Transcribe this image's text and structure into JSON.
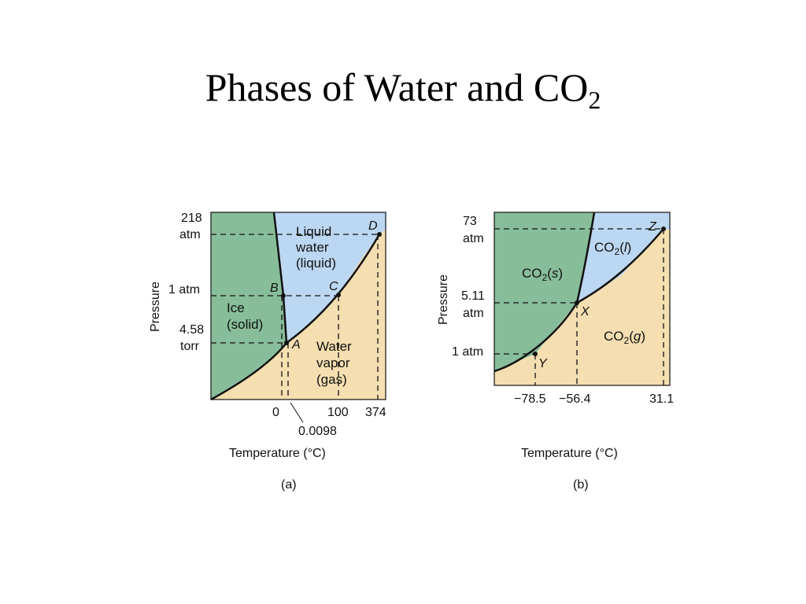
{
  "slide": {
    "title_main": "Phases of Water and CO",
    "title_sub": "2"
  },
  "colors": {
    "solid": "#88bd9a",
    "liquid": "#bcd7f1",
    "gas": "#f5deb0",
    "line": "#111111"
  },
  "panel_a": {
    "caption": "(a)",
    "x_axis_label": "Temperature (°C)",
    "y_axis_label": "Pressure",
    "y_ticks": {
      "t218_a": "218",
      "t218_b": "atm",
      "t1": "1 atm",
      "t458_a": "4.58",
      "t458_b": "torr"
    },
    "x_ticks": {
      "t0": "0",
      "t0098": "0.0098",
      "t100": "100",
      "t374": "374"
    },
    "phases": {
      "solid_1": "Ice",
      "solid_2": "(solid)",
      "liquid_1": "Liquid",
      "liquid_2": "water",
      "liquid_3": "(liquid)",
      "gas_1": "Water",
      "gas_2": "vapor",
      "gas_3": "(gas)"
    },
    "points": {
      "A": "A",
      "B": "B",
      "C": "C",
      "D": "D"
    }
  },
  "panel_b": {
    "caption": "(b)",
    "x_axis_label": "Temperature (°C)",
    "y_axis_label": "Pressure",
    "y_ticks": {
      "t73_a": "73",
      "t73_b": "atm",
      "t511_a": "5.11",
      "t511_b": "atm",
      "t1": "1 atm"
    },
    "x_ticks": {
      "t785": "−78.5",
      "t564": "−56.4",
      "t311": "31.1"
    },
    "phases": {
      "solid_pre": "CO",
      "solid_sub": "2",
      "solid_open": "(",
      "solid_state": "s",
      "solid_close": ")",
      "liquid_pre": "CO",
      "liquid_sub": "2",
      "liquid_open": "(",
      "liquid_state": "l",
      "liquid_close": ")",
      "gas_pre": "CO",
      "gas_sub": "2",
      "gas_open": "(",
      "gas_state": "g",
      "gas_close": ")"
    },
    "points": {
      "X": "X",
      "Y": "Y",
      "Z": "Z"
    }
  }
}
